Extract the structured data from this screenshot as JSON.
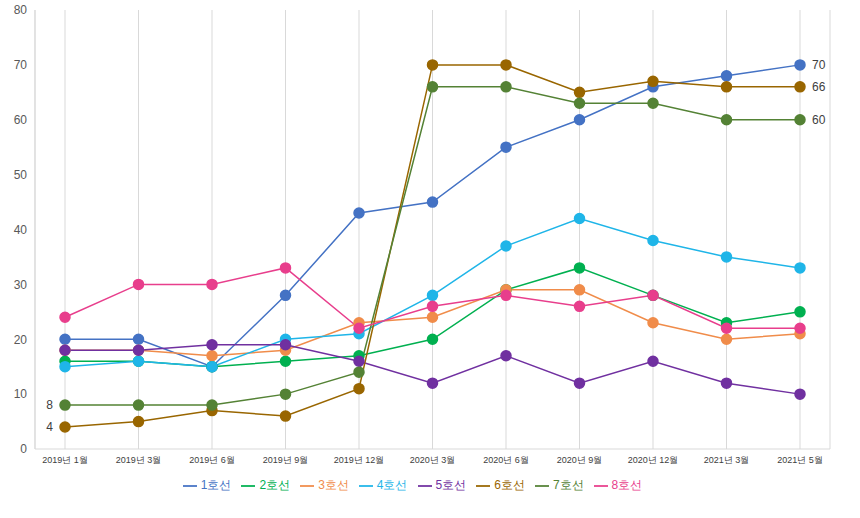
{
  "chart_data": {
    "type": "line",
    "categories": [
      "2019년 1월",
      "2019년 3월",
      "2019년 6월",
      "2019년 9월",
      "2019년 12월",
      "2020년 3월",
      "2020년 6월",
      "2020년 9월",
      "2020년 12월",
      "2021년 3월",
      "2021년 5월"
    ],
    "series": [
      {
        "name": "1호선",
        "color": "#4472c4",
        "values": [
          20,
          20,
          15,
          28,
          43,
          45,
          55,
          60,
          66,
          68,
          70
        ]
      },
      {
        "name": "2호선",
        "color": "#00b050",
        "values": [
          16,
          16,
          15,
          16,
          17,
          20,
          29,
          33,
          28,
          23,
          25
        ]
      },
      {
        "name": "3호선",
        "color": "#f08c4a",
        "values": [
          18,
          18,
          17,
          18,
          23,
          24,
          29,
          29,
          23,
          20,
          21
        ]
      },
      {
        "name": "4호선",
        "color": "#1fb5e8",
        "values": [
          15,
          16,
          15,
          20,
          21,
          28,
          37,
          42,
          38,
          35,
          33
        ]
      },
      {
        "name": "5호선",
        "color": "#7030a0",
        "values": [
          18,
          18,
          19,
          19,
          16,
          12,
          17,
          12,
          16,
          12,
          10
        ]
      },
      {
        "name": "6호선",
        "color": "#996600",
        "values": [
          4,
          5,
          7,
          6,
          11,
          70,
          70,
          65,
          67,
          66,
          66
        ]
      },
      {
        "name": "7호선",
        "color": "#548235",
        "values": [
          8,
          8,
          8,
          10,
          14,
          66,
          66,
          63,
          63,
          60,
          60
        ]
      },
      {
        "name": "8호선",
        "color": "#e83e8c",
        "values": [
          24,
          30,
          30,
          33,
          22,
          26,
          28,
          26,
          28,
          22,
          22
        ]
      }
    ],
    "annotations": [
      {
        "series": "1호선",
        "category": "2021년 5월",
        "text": "70"
      },
      {
        "series": "6호선",
        "category": "2021년 5월",
        "text": "66"
      },
      {
        "series": "7호선",
        "category": "2021년 5월",
        "text": "60"
      },
      {
        "series": "7호선",
        "category": "2019년 1월",
        "text": "8"
      },
      {
        "series": "6호선",
        "category": "2019년 1월",
        "text": "4"
      }
    ],
    "ylim": [
      0,
      80
    ],
    "yticks": [
      0,
      10,
      20,
      30,
      40,
      50,
      60,
      70,
      80
    ],
    "grid": true,
    "legend": "bottom",
    "marker": "circle"
  }
}
